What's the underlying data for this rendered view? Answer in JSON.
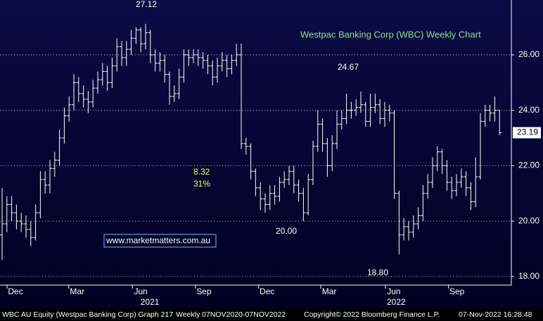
{
  "chart_data": {
    "type": "ohlc",
    "title": "Westpac Banking Corp (WBC) Weekly Chart",
    "color": "#ffffff",
    "grid": true,
    "open": [
      19.5,
      19.9,
      20.6,
      20.3,
      20.0,
      19.9,
      19.7,
      19.4,
      20.3,
      21.5,
      21.3,
      21.9,
      22.2,
      23.0,
      23.8,
      24.2,
      25.0,
      24.6,
      24.4,
      24.3,
      24.8,
      25.1,
      25.4,
      25.0,
      25.6,
      26.3,
      25.9,
      26.2,
      26.6,
      26.9,
      26.4,
      26.8,
      26.0,
      25.7,
      25.8,
      25.3,
      24.5,
      24.6,
      25.2,
      26.0,
      25.9,
      26.0,
      25.9,
      25.8,
      25.6,
      25.2,
      25.6,
      25.8,
      25.5,
      25.8,
      26.0,
      22.8,
      22.7,
      21.8,
      21.2,
      20.8,
      20.6,
      21.0,
      20.9,
      21.4,
      21.5,
      21.8,
      21.3,
      21.0,
      20.3,
      21.5,
      22.7,
      23.5,
      22.8,
      22.0,
      22.8,
      23.5,
      23.7,
      24.0,
      24.0,
      24.1,
      24.2,
      23.6,
      24.1,
      24.2,
      23.7,
      24.0,
      23.9,
      21.0,
      19.5,
      19.8,
      19.6,
      19.9,
      20.2,
      21.0,
      21.4,
      22.0,
      22.5,
      22.0,
      21.4,
      21.1,
      21.4,
      21.6,
      21.2,
      20.7,
      21.6,
      23.6,
      24.0,
      23.9,
      24.0
    ],
    "high": [
      21.2,
      20.9,
      20.9,
      20.6,
      20.3,
      20.2,
      20.0,
      20.6,
      21.8,
      21.8,
      22.2,
      22.5,
      23.3,
      24.1,
      24.5,
      25.3,
      25.2,
      24.9,
      24.7,
      25.1,
      25.4,
      25.7,
      25.6,
      25.9,
      26.6,
      26.5,
      26.5,
      26.9,
      27.0,
      27.0,
      27.12,
      26.9,
      26.2,
      26.1,
      26.0,
      25.4,
      24.9,
      25.5,
      26.2,
      26.2,
      26.2,
      26.2,
      26.1,
      26.0,
      25.8,
      25.9,
      26.1,
      26.0,
      26.0,
      26.4,
      26.4,
      23.0,
      22.8,
      21.9,
      21.4,
      21.0,
      21.3,
      21.3,
      21.6,
      21.8,
      22.0,
      22.0,
      21.5,
      21.2,
      21.7,
      22.9,
      24.0,
      23.7,
      23.0,
      23.1,
      24.0,
      24.0,
      24.6,
      24.3,
      24.4,
      24.67,
      24.3,
      24.6,
      24.6,
      24.4,
      24.3,
      24.2,
      24.0,
      21.1,
      20.1,
      20.0,
      20.2,
      20.5,
      21.3,
      21.7,
      22.3,
      22.7,
      22.6,
      22.2,
      21.6,
      21.7,
      21.9,
      21.8,
      21.4,
      22.3,
      23.9,
      24.2,
      24.2,
      24.5,
      24.0
    ],
    "low": [
      18.6,
      19.6,
      20.0,
      19.7,
      19.6,
      19.4,
      19.1,
      19.3,
      20.1,
      21.0,
      21.0,
      21.6,
      22.0,
      22.8,
      23.6,
      24.0,
      24.3,
      24.1,
      23.9,
      24.1,
      24.6,
      24.9,
      24.7,
      24.8,
      25.4,
      25.6,
      25.6,
      26.0,
      26.4,
      26.1,
      26.2,
      25.7,
      25.4,
      25.4,
      25.0,
      24.2,
      24.3,
      24.4,
      25.0,
      25.6,
      25.7,
      25.6,
      25.5,
      25.3,
      24.9,
      25.0,
      25.4,
      25.2,
      25.3,
      25.6,
      22.6,
      22.4,
      21.5,
      20.9,
      20.4,
      20.3,
      20.4,
      20.6,
      20.7,
      21.2,
      21.3,
      21.0,
      20.7,
      20.0,
      20.2,
      21.3,
      22.5,
      22.5,
      21.6,
      21.8,
      22.6,
      23.3,
      23.5,
      23.7,
      23.8,
      23.9,
      23.4,
      23.4,
      23.9,
      23.5,
      23.4,
      23.6,
      20.8,
      18.8,
      19.3,
      19.3,
      19.4,
      19.7,
      20.0,
      20.8,
      21.2,
      21.8,
      21.7,
      21.1,
      20.8,
      20.9,
      21.2,
      20.9,
      20.4,
      20.5,
      21.5,
      23.4,
      23.6,
      23.6,
      23.1
    ],
    "close": [
      19.9,
      20.6,
      20.3,
      20.0,
      19.9,
      19.7,
      19.4,
      20.3,
      21.5,
      21.3,
      21.9,
      22.2,
      23.0,
      23.8,
      24.2,
      25.0,
      24.6,
      24.4,
      24.3,
      24.8,
      25.1,
      25.4,
      25.0,
      25.6,
      26.3,
      25.9,
      26.2,
      26.6,
      26.9,
      26.4,
      26.8,
      26.0,
      25.7,
      25.8,
      25.3,
      24.5,
      24.6,
      25.2,
      26.0,
      25.9,
      26.0,
      25.9,
      25.8,
      25.6,
      25.2,
      25.6,
      25.8,
      25.5,
      25.8,
      26.0,
      22.8,
      22.7,
      21.8,
      21.2,
      20.8,
      20.6,
      21.0,
      20.9,
      21.4,
      21.5,
      21.8,
      21.3,
      21.0,
      20.3,
      21.5,
      22.7,
      23.5,
      22.8,
      22.0,
      22.8,
      23.5,
      23.7,
      24.0,
      24.0,
      24.1,
      24.2,
      23.6,
      24.1,
      24.2,
      23.7,
      24.0,
      23.9,
      21.0,
      19.5,
      19.8,
      19.6,
      19.9,
      20.2,
      21.0,
      21.4,
      22.0,
      22.5,
      22.0,
      21.4,
      21.1,
      21.4,
      21.6,
      21.2,
      20.7,
      21.6,
      23.6,
      24.0,
      23.9,
      24.0,
      23.19
    ],
    "xlim": [
      -0.44,
      106.47
    ],
    "ylim": [
      17.69,
      27.98
    ],
    "yticks": [
      {
        "value": 18,
        "label": "18.00"
      },
      {
        "value": 20,
        "label": "20.00"
      },
      {
        "value": 22,
        "label": "22.00"
      },
      {
        "value": 24,
        "label": "24.00"
      },
      {
        "value": 26,
        "label": "26.00"
      }
    ],
    "xticks": [
      {
        "value": 2.8,
        "label": "Dec"
      },
      {
        "value": 15.7,
        "label": "Mar"
      },
      {
        "value": 29,
        "label": "Jun"
      },
      {
        "value": 42.2,
        "label": "Sep"
      },
      {
        "value": 55.4,
        "label": "Dec"
      },
      {
        "value": 68.4,
        "label": "Mar"
      },
      {
        "value": 81.9,
        "label": "Jun"
      },
      {
        "value": 95.1,
        "label": "Sep"
      }
    ],
    "year_labels": [
      {
        "value": 30.9,
        "label": "2021"
      },
      {
        "value": 82.4,
        "label": "2022"
      }
    ],
    "annotations": [
      "27.12",
      "24.67",
      "20.00",
      "18.80",
      "8.32",
      "31%"
    ],
    "watermark": "www.marketmatters.com.au",
    "footer": [
      "WBC AU Equity (Westpac Banking Corp) Graph 217",
      "Weekly 07NOV2020-07NOV2022",
      "Copyright© 2022 Bloomberg Finance L.P.",
      "07-Nov-2022 16:28:48"
    ]
  }
}
